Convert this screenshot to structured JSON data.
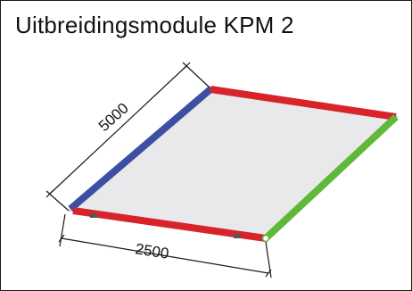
{
  "title": "Uitbreidingsmodule KPM 2",
  "dimensions": {
    "length": "5000",
    "width": "2500"
  },
  "colors": {
    "panel_fill": "#e9e9ec",
    "panel_edge": "#c9c9cf",
    "beam_red": "#d8232a",
    "beam_blue": "#3c4fa3",
    "beam_green": "#5fb83a",
    "dimension_line": "#1a1a1a"
  },
  "icons": [
    "module-panel-icon"
  ]
}
